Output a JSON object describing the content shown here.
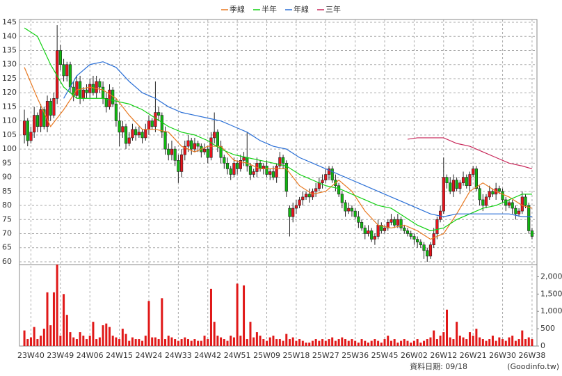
{
  "chart_data": {
    "type": "candlestick",
    "xlim": [
      -1.5,
      156.5
    ],
    "xticks": [
      {
        "value": 2,
        "label": "23W40"
      },
      {
        "value": 11,
        "label": "23W49"
      },
      {
        "value": 20,
        "label": "24W06"
      },
      {
        "value": 29,
        "label": "24W15"
      },
      {
        "value": 38,
        "label": "24W24"
      },
      {
        "value": 47,
        "label": "24W33"
      },
      {
        "value": 56,
        "label": "24W42"
      },
      {
        "value": 65,
        "label": "24W51"
      },
      {
        "value": 74,
        "label": "25W09"
      },
      {
        "value": 83,
        "label": "25W18"
      },
      {
        "value": 92,
        "label": "25W27"
      },
      {
        "value": 101,
        "label": "25W36"
      },
      {
        "value": 110,
        "label": "25W45"
      },
      {
        "value": 119,
        "label": "26W02"
      },
      {
        "value": 128,
        "label": "26W12"
      },
      {
        "value": 137,
        "label": "26W21"
      },
      {
        "value": 146,
        "label": "26W30"
      },
      {
        "value": 155,
        "label": "26W38"
      }
    ],
    "ylim": [
      59,
      146
    ],
    "yticks": [
      60,
      65,
      70,
      75,
      80,
      85,
      90,
      95,
      100,
      105,
      110,
      115,
      120,
      125,
      130,
      135,
      140,
      145
    ],
    "y2lim": [
      0,
      2350
    ],
    "y2ticks": [
      0,
      500,
      {
        "value": 1000,
        "label": "1,000"
      },
      {
        "value": 1500,
        "label": "1,500"
      },
      {
        "value": 2000,
        "label": "2,000"
      }
    ],
    "grid": true,
    "legend": "top",
    "up_color": "#e8141c",
    "down_color": "#10b810",
    "candles": {
      "open": [
        105,
        110,
        103,
        106,
        112,
        108,
        114,
        108,
        117,
        112,
        118,
        135,
        130,
        126,
        130,
        122,
        119,
        124,
        118,
        121,
        120,
        123,
        120,
        124,
        122,
        118,
        115,
        121,
        116,
        110,
        106,
        108,
        102,
        104,
        107,
        105,
        106,
        104,
        107,
        110,
        108,
        113,
        112,
        106,
        100,
        98,
        100,
        96,
        92,
        98,
        101,
        103,
        100,
        102,
        101,
        99,
        100,
        97,
        104,
        106,
        101,
        97,
        95,
        93,
        91,
        95,
        93,
        96,
        97,
        94,
        91,
        92,
        95,
        93,
        94,
        91,
        92,
        90,
        94,
        97,
        95,
        79,
        76,
        79,
        80,
        82,
        83,
        84,
        83,
        85,
        86,
        88,
        89,
        91,
        93,
        89,
        87,
        84,
        81,
        78,
        79,
        78,
        76,
        74,
        72,
        70,
        71,
        68,
        69,
        73,
        71,
        72,
        74,
        75,
        73,
        75,
        72,
        71,
        70,
        69,
        68,
        67,
        66,
        64,
        62,
        66,
        70,
        75,
        78,
        90,
        88,
        85,
        89,
        86,
        88,
        90,
        87,
        91,
        93,
        86,
        82,
        80,
        83,
        85,
        84,
        86,
        85,
        82,
        80,
        81,
        79,
        77,
        78,
        83,
        80,
        71
      ],
      "high": [
        114,
        111,
        108,
        115,
        113,
        116,
        115,
        119,
        118,
        120,
        144,
        137,
        132,
        131,
        131,
        124,
        126,
        126,
        122,
        123,
        125,
        126,
        126,
        125,
        124,
        120,
        123,
        122,
        118,
        113,
        110,
        109,
        106,
        109,
        108,
        108,
        107,
        109,
        112,
        111,
        124,
        115,
        113,
        108,
        102,
        103,
        101,
        98,
        100,
        103,
        105,
        104,
        104,
        103,
        102,
        102,
        101,
        106,
        113,
        107,
        103,
        98,
        97,
        94,
        97,
        96,
        98,
        99,
        106,
        95,
        93,
        97,
        96,
        95,
        96,
        93,
        94,
        95,
        99,
        98,
        96,
        80,
        81,
        82,
        83,
        85,
        85,
        86,
        86,
        88,
        90,
        91,
        93,
        94,
        94,
        91,
        88,
        85,
        82,
        81,
        80,
        79,
        78,
        75,
        73,
        73,
        72,
        70,
        75,
        74,
        73,
        75,
        77,
        76,
        77,
        76,
        73,
        72,
        71,
        70,
        69,
        68,
        67,
        65,
        67,
        72,
        76,
        80,
        97,
        91,
        90,
        91,
        90,
        89,
        92,
        91,
        92,
        94,
        94,
        87,
        84,
        84,
        87,
        86,
        88,
        87,
        86,
        83,
        82,
        82,
        80,
        79,
        85,
        84,
        81,
        72
      ],
      "low": [
        102,
        101,
        102,
        104,
        106,
        106,
        107,
        106,
        110,
        111,
        116,
        128,
        124,
        124,
        120,
        117,
        118,
        116,
        117,
        118,
        118,
        119,
        118,
        120,
        116,
        113,
        114,
        115,
        108,
        101,
        104,
        100,
        101,
        103,
        103,
        104,
        102,
        103,
        105,
        107,
        106,
        110,
        104,
        98,
        96,
        96,
        94,
        88,
        90,
        96,
        99,
        98,
        99,
        99,
        97,
        98,
        95,
        96,
        102,
        99,
        95,
        93,
        91,
        89,
        90,
        91,
        92,
        94,
        92,
        89,
        90,
        90,
        92,
        91,
        90,
        89,
        89,
        88,
        93,
        93,
        83,
        69,
        74,
        77,
        79,
        80,
        82,
        81,
        82,
        83,
        85,
        86,
        88,
        89,
        88,
        85,
        83,
        79,
        76,
        77,
        76,
        75,
        72,
        71,
        68,
        69,
        67,
        66,
        68,
        70,
        70,
        71,
        73,
        72,
        72,
        71,
        70,
        69,
        68,
        66,
        65,
        65,
        61,
        60,
        61,
        65,
        68,
        74,
        77,
        86,
        84,
        83,
        85,
        84,
        87,
        86,
        85,
        90,
        85,
        80,
        78,
        79,
        82,
        83,
        82,
        84,
        81,
        78,
        79,
        77,
        75,
        76,
        77,
        79,
        70,
        68
      ],
      "close": [
        110,
        103,
        106,
        112,
        108,
        114,
        108,
        117,
        112,
        118,
        135,
        130,
        126,
        130,
        122,
        119,
        124,
        118,
        121,
        120,
        123,
        120,
        124,
        122,
        118,
        115,
        121,
        116,
        110,
        106,
        108,
        102,
        104,
        107,
        105,
        106,
        104,
        107,
        110,
        108,
        113,
        112,
        106,
        100,
        98,
        100,
        96,
        92,
        98,
        101,
        103,
        100,
        102,
        101,
        99,
        100,
        97,
        104,
        106,
        101,
        97,
        95,
        93,
        91,
        95,
        93,
        96,
        97,
        94,
        91,
        92,
        95,
        93,
        94,
        91,
        92,
        90,
        94,
        97,
        95,
        85,
        76,
        79,
        80,
        82,
        83,
        84,
        83,
        85,
        86,
        88,
        89,
        91,
        93,
        89,
        87,
        84,
        81,
        78,
        79,
        78,
        76,
        74,
        72,
        70,
        71,
        68,
        69,
        73,
        71,
        72,
        74,
        75,
        73,
        75,
        72,
        71,
        70,
        69,
        68,
        67,
        66,
        64,
        62,
        66,
        70,
        75,
        78,
        90,
        88,
        85,
        89,
        86,
        88,
        90,
        87,
        91,
        93,
        86,
        82,
        80,
        83,
        85,
        84,
        86,
        85,
        82,
        80,
        81,
        79,
        77,
        78,
        83,
        80,
        71,
        69
      ]
    },
    "volume": {
      "color": "#e01818",
      "values": [
        450,
        200,
        250,
        550,
        200,
        300,
        500,
        1550,
        600,
        1550,
        2350,
        300,
        1500,
        900,
        400,
        250,
        200,
        400,
        300,
        200,
        300,
        700,
        200,
        250,
        600,
        650,
        550,
        300,
        250,
        200,
        500,
        350,
        150,
        250,
        200,
        200,
        150,
        300,
        1300,
        250,
        250,
        200,
        1380,
        200,
        300,
        250,
        200,
        150,
        200,
        250,
        200,
        150,
        200,
        150,
        150,
        300,
        200,
        1650,
        700,
        300,
        250,
        200,
        150,
        300,
        250,
        1800,
        300,
        1750,
        200,
        700,
        250,
        400,
        300,
        200,
        150,
        250,
        300,
        200,
        200,
        150,
        350,
        200,
        250,
        150,
        200,
        150,
        100,
        100,
        150,
        200,
        150,
        200,
        150,
        200,
        250,
        150,
        200,
        250,
        200,
        150,
        200,
        150,
        100,
        200,
        150,
        100,
        150,
        200,
        150,
        100,
        200,
        300,
        150,
        200,
        100,
        150,
        200,
        150,
        100,
        150,
        200,
        100,
        150,
        200,
        250,
        450,
        200,
        300,
        400,
        1050,
        250,
        200,
        700,
        300,
        250,
        200,
        400,
        300,
        500,
        250,
        200,
        150,
        200,
        300,
        150,
        250,
        200,
        150,
        250,
        300,
        150,
        200,
        450,
        200,
        250,
        200
      ]
    },
    "series": [
      {
        "name": "季線",
        "color": "#e87820",
        "x": [
          0,
          4,
          8,
          12,
          16,
          20,
          24,
          28,
          32,
          36,
          40,
          44,
          48,
          52,
          56,
          60,
          64,
          68,
          72,
          76,
          80,
          84,
          88,
          92,
          96,
          100,
          104,
          108,
          112,
          116,
          120,
          124,
          128,
          132,
          136,
          140,
          144,
          148,
          152,
          155
        ],
        "values": [
          129,
          118,
          108,
          114,
          121,
          122,
          121,
          118,
          112,
          107,
          107,
          106,
          101,
          99,
          101,
          101,
          96,
          95,
          93,
          93,
          93,
          87,
          84,
          85,
          89,
          85,
          78,
          73,
          72,
          73,
          71,
          68,
          70,
          77,
          85,
          88,
          85,
          83,
          80,
          79
        ]
      },
      {
        "name": "半年",
        "color": "#10d010",
        "x": [
          0,
          4,
          8,
          12,
          16,
          20,
          24,
          28,
          32,
          36,
          40,
          44,
          48,
          52,
          56,
          60,
          64,
          68,
          72,
          76,
          80,
          84,
          88,
          92,
          96,
          100,
          104,
          108,
          112,
          116,
          120,
          124,
          128,
          132,
          136,
          140,
          144,
          148,
          152,
          155
        ],
        "values": [
          143,
          140,
          130,
          122,
          118,
          118,
          118,
          117,
          116,
          114,
          111,
          108,
          106,
          105,
          103,
          100,
          98,
          97,
          96,
          95,
          94,
          91,
          89,
          87,
          86,
          84,
          82,
          80,
          79,
          76,
          73,
          71,
          72,
          75,
          77,
          79,
          80,
          82,
          84,
          84
        ]
      },
      {
        "name": "年線",
        "color": "#2a6fd6",
        "x": [
          12,
          16,
          20,
          24,
          28,
          32,
          36,
          40,
          44,
          48,
          52,
          56,
          60,
          64,
          68,
          72,
          76,
          80,
          84,
          88,
          92,
          96,
          100,
          104,
          108,
          112,
          116,
          120,
          124,
          128,
          132,
          136,
          140,
          144,
          148,
          152,
          155
        ],
        "values": [
          118,
          126,
          130,
          131,
          129,
          124,
          120,
          118,
          115,
          113,
          112,
          111,
          110,
          108,
          106,
          103,
          101,
          100,
          97,
          95,
          93,
          91,
          89,
          87,
          85,
          83,
          81,
          79,
          77,
          76,
          77,
          77,
          77,
          77,
          77,
          76,
          76
        ]
      },
      {
        "name": "三年",
        "color": "#c8285a",
        "x": [
          117,
          120,
          124,
          128,
          132,
          136,
          140,
          144,
          148,
          152,
          155
        ],
        "values": [
          103.5,
          104,
          104,
          104,
          102,
          101,
          99,
          97,
          95,
          94,
          93
        ]
      }
    ]
  },
  "footer": {
    "date": "資料日期: 09/18",
    "source": "(Goodinfo.tw)"
  }
}
